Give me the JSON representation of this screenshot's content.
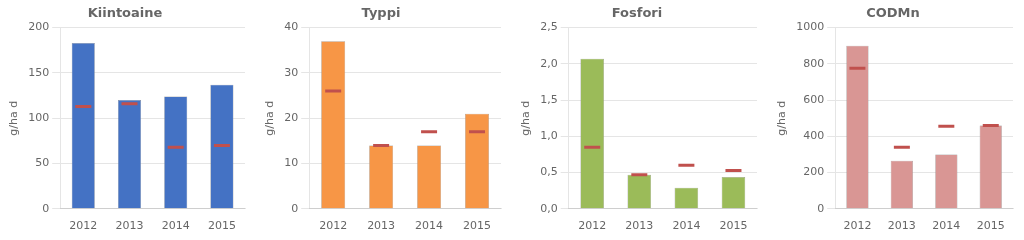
{
  "chart_data": [
    {
      "type": "bar",
      "title": "Kiintoaine",
      "ylabel": "g/ha d",
      "categories": [
        "2012",
        "2013",
        "2014",
        "2015"
      ],
      "series": [
        {
          "type": "bar",
          "color": "#4472C4",
          "values": [
            183,
            120,
            124,
            137
          ]
        },
        {
          "type": "scatter",
          "marker": "dash",
          "color": "#C0504D",
          "values": [
            113,
            116,
            68,
            70
          ]
        }
      ],
      "ylim": [
        0,
        200
      ],
      "yticks": [
        0,
        50,
        100,
        150,
        200
      ],
      "grid": true
    },
    {
      "type": "bar",
      "title": "Typpi",
      "ylabel": "g/ha d",
      "categories": [
        "2012",
        "2013",
        "2014",
        "2015"
      ],
      "series": [
        {
          "type": "bar",
          "color": "#F79646",
          "values": [
            37,
            14,
            14,
            21
          ]
        },
        {
          "type": "scatter",
          "marker": "dash",
          "color": "#C0504D",
          "values": [
            26,
            14,
            17,
            17
          ]
        }
      ],
      "ylim": [
        0,
        40
      ],
      "yticks": [
        0,
        10,
        20,
        30,
        40
      ],
      "grid": true
    },
    {
      "type": "bar",
      "title": "Fosfori",
      "ylabel": "g/ha d",
      "categories": [
        "2012",
        "2013",
        "2014",
        "2015"
      ],
      "series": [
        {
          "type": "bar",
          "color": "#9BBB59",
          "values": [
            2.07,
            0.47,
            0.29,
            0.44
          ]
        },
        {
          "type": "scatter",
          "marker": "dash",
          "color": "#C0504D",
          "values": [
            0.85,
            0.47,
            0.6,
            0.53
          ]
        }
      ],
      "ylim": [
        0,
        2.5
      ],
      "yticks": [
        {
          "value": 0.0,
          "label": "0,0"
        },
        {
          "value": 0.5,
          "label": "0,5"
        },
        {
          "value": 1.0,
          "label": "1,0"
        },
        {
          "value": 1.5,
          "label": "1,5"
        },
        {
          "value": 2.0,
          "label": "2,0"
        },
        {
          "value": 2.5,
          "label": "2,5"
        }
      ],
      "grid": true
    },
    {
      "type": "bar",
      "title": "CODMn",
      "ylabel": "g/ha d",
      "categories": [
        "2012",
        "2013",
        "2014",
        "2015"
      ],
      "series": [
        {
          "type": "bar",
          "color": "#D99694",
          "values": [
            900,
            265,
            300,
            460
          ]
        },
        {
          "type": "scatter",
          "marker": "dash",
          "color": "#C0504D",
          "values": [
            775,
            340,
            455,
            460
          ]
        }
      ],
      "ylim": [
        0,
        1000
      ],
      "yticks": [
        0,
        200,
        400,
        600,
        800,
        1000
      ],
      "grid": true
    }
  ]
}
